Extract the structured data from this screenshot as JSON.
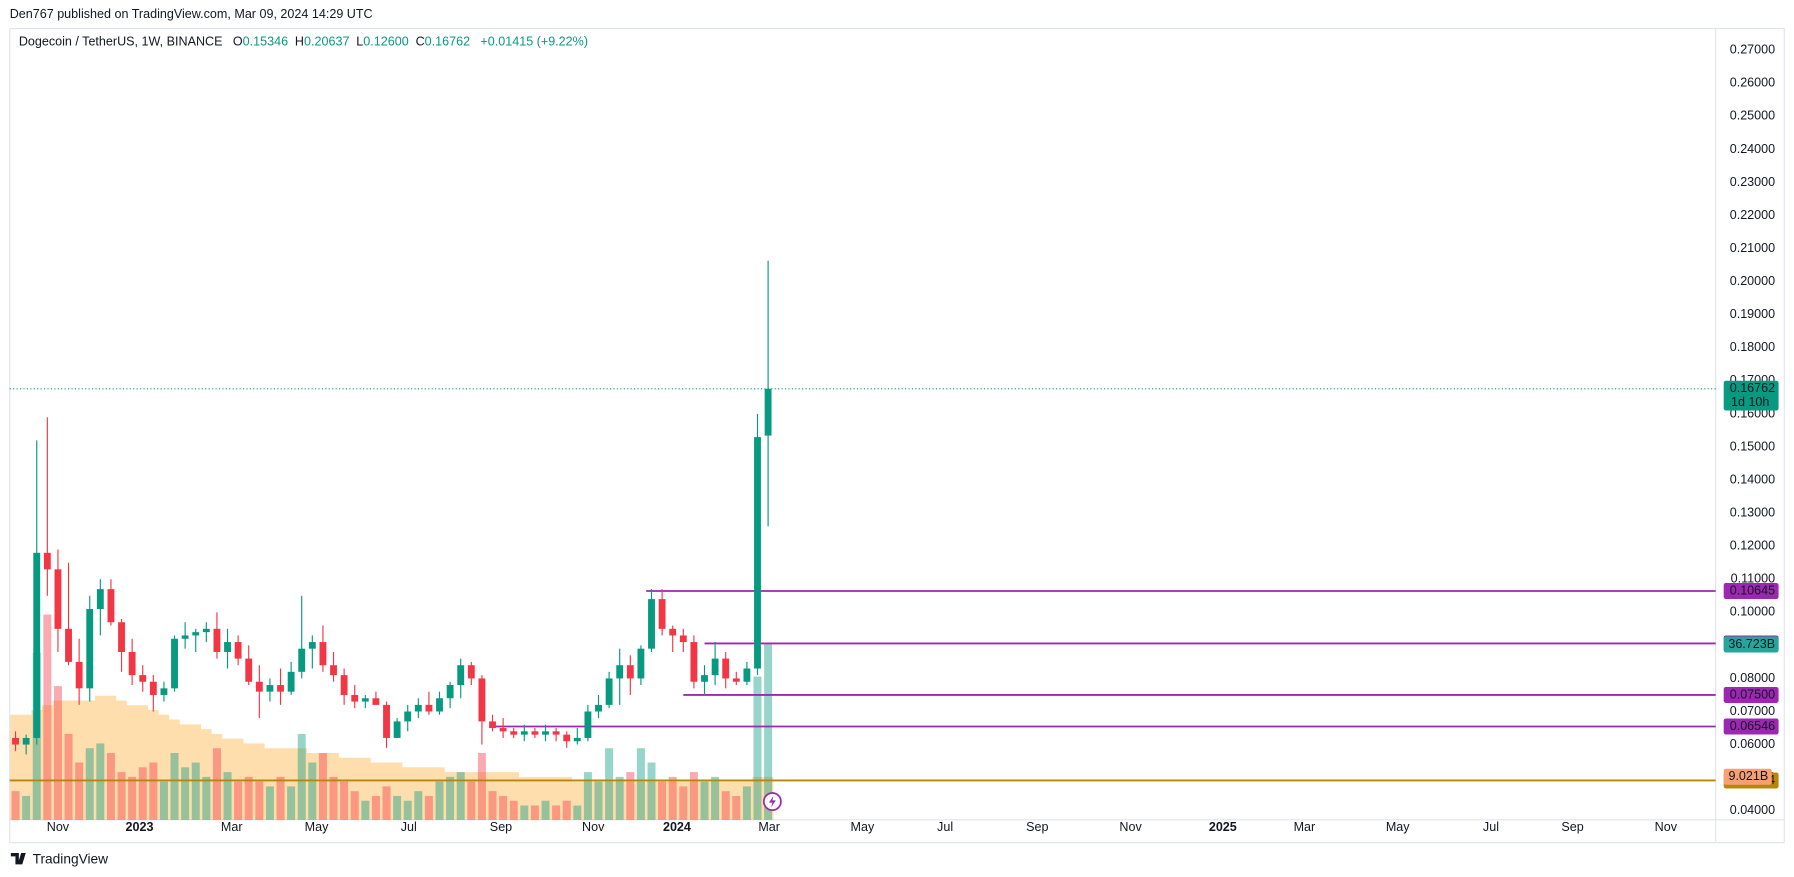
{
  "header": {
    "publisher": "Den767 published on TradingView.com, Mar 09, 2024 14:29 UTC",
    "brand": "TradingView"
  },
  "chart_data": {
    "type": "candlestick",
    "title": "Dogecoin / TetherUS, 1W, BINANCE",
    "legend": [
      {
        "key": "O",
        "value": "0.15346"
      },
      {
        "key": "H",
        "value": "0.20637"
      },
      {
        "key": "L",
        "value": "0.12600"
      },
      {
        "key": "C",
        "value": "0.16762"
      }
    ],
    "change": "+0.01415 (+9.22%)",
    "up_color": "#089981",
    "down_color": "#f23645",
    "open": [
      0.062,
      0.06,
      0.062,
      0.118,
      0.113,
      0.095,
      0.085,
      0.077,
      0.101,
      0.107,
      0.097,
      0.088,
      0.081,
      0.079,
      0.075,
      0.077,
      0.092,
      0.093,
      0.094,
      0.095,
      0.088,
      0.091,
      0.086,
      0.079,
      0.076,
      0.078,
      0.076,
      0.082,
      0.089,
      0.091,
      0.084,
      0.081,
      0.075,
      0.073,
      0.074,
      0.072,
      0.062,
      0.067,
      0.07,
      0.072,
      0.07,
      0.074,
      0.078,
      0.084,
      0.08,
      0.067,
      0.065,
      0.064,
      0.063,
      0.064,
      0.063,
      0.064,
      0.063,
      0.061,
      0.062,
      0.07,
      0.072,
      0.08,
      0.084,
      0.08,
      0.089,
      0.104,
      0.095,
      0.093,
      0.091,
      0.079,
      0.081,
      0.086,
      0.08,
      0.079,
      0.083,
      0.15346
    ],
    "high": [
      0.064,
      0.063,
      0.152,
      0.159,
      0.119,
      0.115,
      0.092,
      0.105,
      0.11,
      0.11,
      0.098,
      0.092,
      0.084,
      0.081,
      0.079,
      0.093,
      0.097,
      0.095,
      0.097,
      0.1,
      0.095,
      0.093,
      0.09,
      0.084,
      0.08,
      0.083,
      0.085,
      0.105,
      0.093,
      0.096,
      0.088,
      0.083,
      0.078,
      0.075,
      0.076,
      0.073,
      0.068,
      0.072,
      0.074,
      0.076,
      0.076,
      0.079,
      0.086,
      0.085,
      0.081,
      0.069,
      0.068,
      0.065,
      0.066,
      0.065,
      0.066,
      0.065,
      0.064,
      0.065,
      0.072,
      0.075,
      0.082,
      0.089,
      0.087,
      0.09,
      0.107,
      0.107,
      0.096,
      0.095,
      0.093,
      0.084,
      0.091,
      0.088,
      0.082,
      0.085,
      0.16,
      0.20637
    ],
    "low": [
      0.058,
      0.057,
      0.06,
      0.105,
      0.088,
      0.084,
      0.072,
      0.073,
      0.093,
      0.096,
      0.082,
      0.078,
      0.076,
      0.07,
      0.073,
      0.076,
      0.089,
      0.088,
      0.091,
      0.086,
      0.083,
      0.084,
      0.078,
      0.068,
      0.073,
      0.072,
      0.075,
      0.08,
      0.083,
      0.082,
      0.079,
      0.072,
      0.071,
      0.071,
      0.072,
      0.059,
      0.062,
      0.064,
      0.068,
      0.069,
      0.069,
      0.071,
      0.074,
      0.078,
      0.06,
      0.064,
      0.062,
      0.062,
      0.061,
      0.062,
      0.061,
      0.061,
      0.059,
      0.06,
      0.061,
      0.068,
      0.071,
      0.072,
      0.075,
      0.078,
      0.088,
      0.093,
      0.088,
      0.088,
      0.077,
      0.075,
      0.078,
      0.077,
      0.078,
      0.078,
      0.081,
      0.126
    ],
    "close": [
      0.06,
      0.062,
      0.118,
      0.113,
      0.095,
      0.085,
      0.077,
      0.101,
      0.107,
      0.097,
      0.088,
      0.081,
      0.079,
      0.075,
      0.077,
      0.092,
      0.093,
      0.094,
      0.095,
      0.088,
      0.091,
      0.086,
      0.079,
      0.076,
      0.078,
      0.076,
      0.082,
      0.089,
      0.091,
      0.084,
      0.081,
      0.075,
      0.073,
      0.074,
      0.072,
      0.062,
      0.067,
      0.07,
      0.072,
      0.07,
      0.074,
      0.078,
      0.084,
      0.08,
      0.067,
      0.065,
      0.064,
      0.063,
      0.064,
      0.063,
      0.064,
      0.063,
      0.061,
      0.062,
      0.07,
      0.072,
      0.08,
      0.084,
      0.08,
      0.089,
      0.104,
      0.095,
      0.093,
      0.091,
      0.079,
      0.081,
      0.086,
      0.08,
      0.079,
      0.083,
      0.153,
      0.16762
    ],
    "volume": [
      6,
      5,
      35,
      43,
      28,
      18,
      12,
      15,
      16,
      14,
      10,
      9,
      11,
      12,
      8,
      14,
      11,
      12,
      9,
      15,
      10,
      8,
      9,
      8,
      7,
      9,
      7,
      18,
      12,
      14,
      9,
      8,
      6,
      4,
      5,
      7,
      5,
      4,
      6,
      5,
      8,
      9,
      10,
      8,
      14,
      6,
      5,
      4,
      3,
      3,
      4,
      3,
      4,
      3,
      10,
      8,
      15,
      9,
      10,
      15,
      12,
      8,
      9,
      7,
      10,
      8,
      9,
      6,
      5,
      7,
      30,
      36.723
    ],
    "volume_ma": [
      22,
      22,
      23,
      24,
      25,
      25,
      25,
      25,
      26,
      26,
      25,
      24,
      24,
      23,
      22,
      21,
      20,
      20,
      19,
      18,
      17,
      17,
      16,
      16,
      15,
      15,
      15,
      15,
      14,
      14,
      14,
      13,
      13,
      13,
      12,
      12,
      12,
      11,
      11,
      11,
      11,
      10,
      10,
      10,
      10,
      10,
      10,
      10,
      9,
      9,
      9,
      9,
      9,
      8,
      8,
      8,
      8,
      8,
      8,
      8,
      8,
      8,
      8,
      8,
      8,
      8,
      8,
      8,
      8,
      8,
      9,
      9.021
    ],
    "volume_label": "36.723B",
    "volume_ma_label": "9.021B",
    "ylim": [
      0.03723,
      0.27553
    ],
    "volume_ylim": [
      0,
      165
    ],
    "yticks": [
      {
        "value": 0.04,
        "label": "0.04000"
      },
      {
        "value": 0.05,
        "label": "0.05000"
      },
      {
        "value": 0.06,
        "label": "0.06000"
      },
      {
        "value": 0.07,
        "label": "0.07000"
      },
      {
        "value": 0.08,
        "label": "0.08000"
      },
      {
        "value": 0.09,
        "label": "0.09000"
      },
      {
        "value": 0.1,
        "label": "0.10000"
      },
      {
        "value": 0.11,
        "label": "0.11000"
      },
      {
        "value": 0.12,
        "label": "0.12000"
      },
      {
        "value": 0.13,
        "label": "0.13000"
      },
      {
        "value": 0.14,
        "label": "0.14000"
      },
      {
        "value": 0.15,
        "label": "0.15000"
      },
      {
        "value": 0.16,
        "label": "0.16000"
      },
      {
        "value": 0.17,
        "label": "0.17000"
      },
      {
        "value": 0.18,
        "label": "0.18000"
      },
      {
        "value": 0.19,
        "label": "0.19000"
      },
      {
        "value": 0.2,
        "label": "0.20000"
      },
      {
        "value": 0.21,
        "label": "0.21000"
      },
      {
        "value": 0.22,
        "label": "0.22000"
      },
      {
        "value": 0.23,
        "label": "0.23000"
      },
      {
        "value": 0.24,
        "label": "0.24000"
      },
      {
        "value": 0.25,
        "label": "0.25000"
      },
      {
        "value": 0.26,
        "label": "0.26000"
      },
      {
        "value": 0.27,
        "label": "0.27000"
      }
    ],
    "xlim": [
      -0.55,
      160.4
    ],
    "xticks": [
      {
        "value": 4,
        "label": "Nov"
      },
      {
        "value": 11.7,
        "label": "2023"
      },
      {
        "value": 20.4,
        "label": "Mar"
      },
      {
        "value": 28.4,
        "label": "May"
      },
      {
        "value": 37.1,
        "label": "Jul"
      },
      {
        "value": 45.8,
        "label": "Sep"
      },
      {
        "value": 54.5,
        "label": "Nov"
      },
      {
        "value": 62.4,
        "label": "2024"
      },
      {
        "value": 71.1,
        "label": "Mar"
      },
      {
        "value": 79.9,
        "label": "May"
      },
      {
        "value": 87.7,
        "label": "Jul"
      },
      {
        "value": 96.4,
        "label": "Sep"
      },
      {
        "value": 105.2,
        "label": "Nov"
      },
      {
        "value": 113.9,
        "label": "2025"
      },
      {
        "value": 121.6,
        "label": "Mar"
      },
      {
        "value": 130.4,
        "label": "May"
      },
      {
        "value": 139.2,
        "label": "Jul"
      },
      {
        "value": 146.9,
        "label": "Sep"
      },
      {
        "value": 155.7,
        "label": "Nov"
      }
    ],
    "grid": true,
    "levels": [
      {
        "value": 0.10645,
        "color": "#9c27b0",
        "start": 59.5
      },
      {
        "value": 0.09058,
        "color": "#9c27b0",
        "start": 65
      },
      {
        "value": 0.075,
        "label": "0.07500",
        "color": "#9c27b0",
        "start": 63
      },
      {
        "value": 0.06546,
        "color": "#9c27b0",
        "start": 45
      },
      {
        "value": 0.04914,
        "color": "#b8860b",
        "start": -0.55
      }
    ],
    "last_price": {
      "value": 0.16762,
      "countdown": "1d 10h"
    }
  }
}
